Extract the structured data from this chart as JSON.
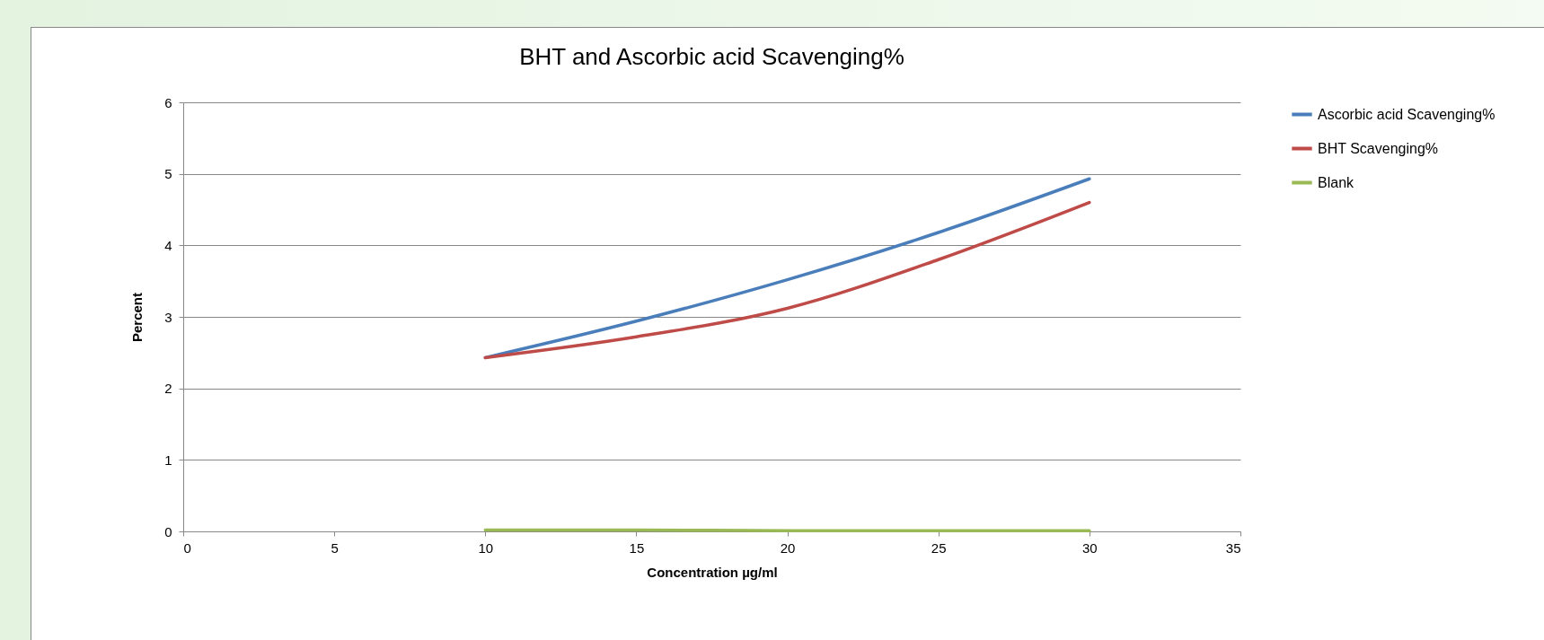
{
  "chart_data": {
    "type": "line",
    "title": "BHT and Ascorbic acid Scavenging%",
    "xlabel": "Concentration µg/ml",
    "ylabel": "Percent",
    "x": [
      10,
      15,
      20,
      25,
      30
    ],
    "series": [
      {
        "name": "Ascorbic acid Scavenging%",
        "color": "#4a7ebb",
        "values": [
          2.43,
          2.94,
          3.52,
          4.18,
          4.93
        ]
      },
      {
        "name": "BHT Scavenging%",
        "color": "#be4b48",
        "values": [
          2.43,
          2.72,
          3.12,
          3.8,
          4.6
        ]
      },
      {
        "name": "Blank",
        "color": "#98b954",
        "values": [
          0.02,
          0.02,
          0.01,
          0.01,
          0.01
        ]
      }
    ],
    "xlim": [
      0,
      35
    ],
    "xticks": [
      0,
      5,
      10,
      15,
      20,
      25,
      30,
      35
    ],
    "ylim": [
      0,
      6
    ],
    "yticks": [
      0,
      1,
      2,
      3,
      4,
      5,
      6
    ],
    "grid": "y",
    "legend": "right",
    "marker": "none",
    "line_style": "solid"
  }
}
